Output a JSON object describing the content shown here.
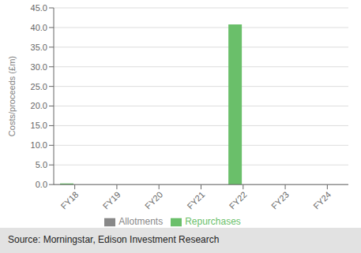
{
  "chart_data": {
    "type": "bar",
    "categories": [
      "FY18",
      "FY19",
      "FY20",
      "FY21",
      "FY22",
      "FY23",
      "FY24"
    ],
    "series": [
      {
        "name": "Repurchases",
        "color": "#6abf6a",
        "values": [
          0.3,
          0.0,
          0.0,
          0.0,
          40.8,
          0.0,
          0.0
        ]
      },
      {
        "name": "Allotments",
        "color": "#888888",
        "values": [
          0.0,
          0.0,
          0.0,
          0.0,
          0.0,
          0.0,
          0.0
        ]
      }
    ],
    "ylabel": "Costs/proceeds (£m)",
    "ylim": [
      0,
      45.0
    ],
    "yticks": [
      {
        "value": 0.0,
        "label": "0.0"
      },
      {
        "value": 5.0,
        "label": "5.0"
      },
      {
        "value": 10.0,
        "label": "10.0"
      },
      {
        "value": 15.0,
        "label": "15.0"
      },
      {
        "value": 20.0,
        "label": "20.0"
      },
      {
        "value": 25.0,
        "label": "25.0"
      },
      {
        "value": 30.0,
        "label": "30.0"
      },
      {
        "value": 35.0,
        "label": "35.0"
      },
      {
        "value": 40.0,
        "label": "40.0"
      },
      {
        "value": 45.0,
        "label": "45.0"
      }
    ],
    "grid": true,
    "legend": "bottom",
    "annotations": [
      "Source: Morningstar, Edison Investment Research"
    ]
  }
}
